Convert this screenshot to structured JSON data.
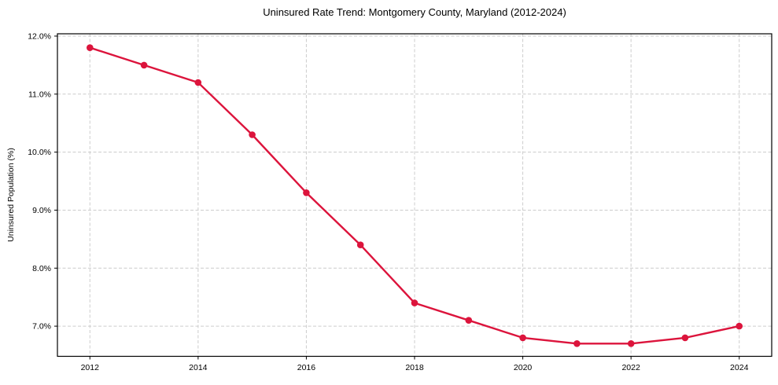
{
  "chart_data": {
    "type": "line",
    "title": "Uninsured Rate Trend: Montgomery County, Maryland (2012-2024)",
    "xlabel": "",
    "ylabel": "Uninsured Population (%)",
    "x": [
      2012,
      2013,
      2014,
      2015,
      2016,
      2017,
      2018,
      2019,
      2020,
      2021,
      2022,
      2023,
      2024
    ],
    "values": [
      11.8,
      11.5,
      11.2,
      10.3,
      9.3,
      8.4,
      7.4,
      7.1,
      6.8,
      6.7,
      6.7,
      6.8,
      7.0
    ],
    "unit": "%",
    "xticks": [
      2012,
      2014,
      2016,
      2018,
      2020,
      2022,
      2024
    ],
    "yticks": [
      7.0,
      8.0,
      9.0,
      10.0,
      11.0,
      12.0
    ],
    "ytick_labels": [
      "7.0%",
      "8.0%",
      "9.0%",
      "10.0%",
      "11.0%",
      "12.0%"
    ],
    "xlim": [
      2011.4,
      2024.6
    ],
    "ylim": [
      6.48,
      12.04
    ],
    "grid": true,
    "grid_style": "dashed",
    "grid_color": "#cccccc",
    "spine_color": "#000000",
    "line_color": "#DC143C",
    "marker": "circle",
    "legend": "none"
  }
}
